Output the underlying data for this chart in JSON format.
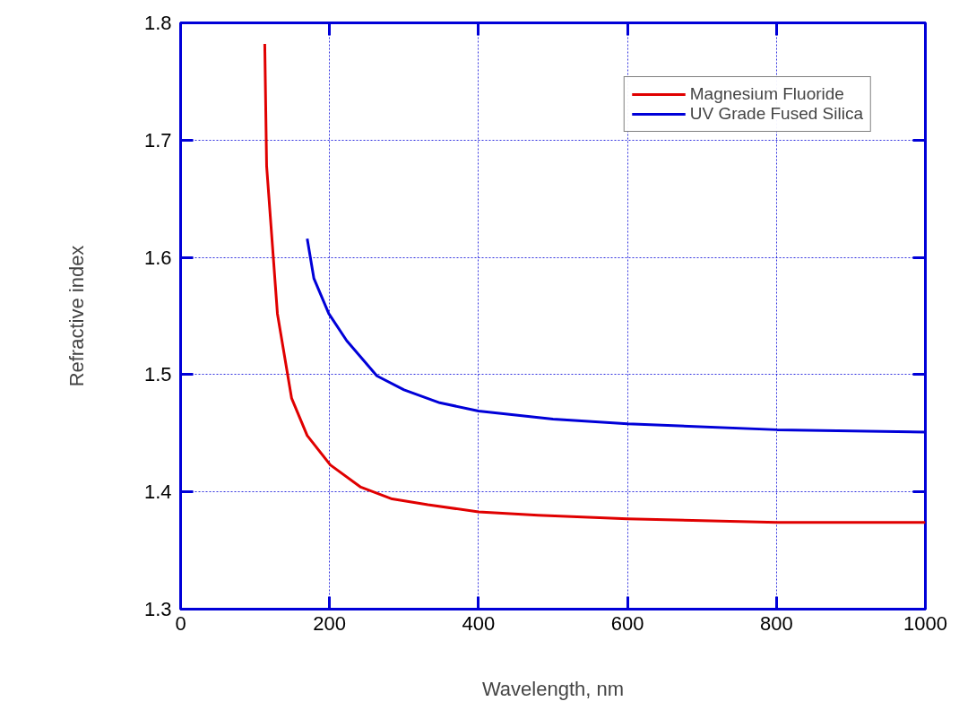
{
  "chart_data": {
    "type": "line",
    "xlabel": "Wavelength, nm",
    "ylabel": "Refractive index",
    "xlim": [
      0,
      1000
    ],
    "ylim": [
      1.3,
      1.8
    ],
    "xticks": [
      0,
      200,
      400,
      600,
      800,
      1000
    ],
    "yticks": [
      1.3,
      1.4,
      1.5,
      1.6,
      1.7,
      1.8
    ],
    "grid": true,
    "legend": "top right",
    "line_style": "solid",
    "marker": "none",
    "series": [
      {
        "name": "Magnesium Fluoride",
        "color": "#e00000",
        "x": [
          113,
          115.5,
          130,
          149,
          170,
          201,
          242,
          284,
          332,
          400,
          480,
          600,
          801,
          1000
        ],
        "values": [
          1.782,
          1.678,
          1.552,
          1.48,
          1.448,
          1.423,
          1.404,
          1.394,
          1.389,
          1.383,
          1.38,
          1.377,
          1.374,
          1.374
        ]
      },
      {
        "name": "UV Grade Fused Silica",
        "color": "#0000d8",
        "x": [
          170,
          179,
          199,
          223,
          263.5,
          300,
          348,
          400,
          500,
          600,
          801,
          1000
        ],
        "values": [
          1.616,
          1.582,
          1.552,
          1.529,
          1.499,
          1.487,
          1.476,
          1.469,
          1.462,
          1.458,
          1.453,
          1.451
        ]
      }
    ]
  }
}
